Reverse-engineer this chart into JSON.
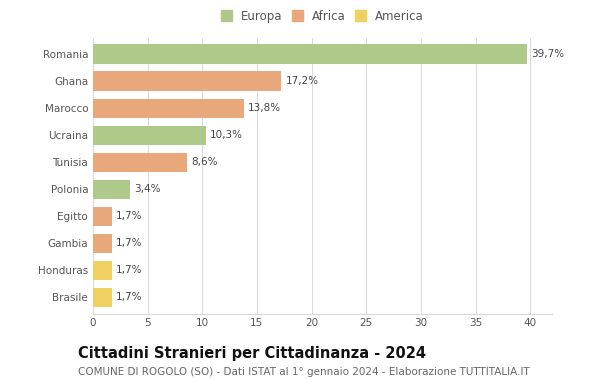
{
  "categories": [
    "Romania",
    "Ghana",
    "Marocco",
    "Ucraina",
    "Tunisia",
    "Polonia",
    "Egitto",
    "Gambia",
    "Honduras",
    "Brasile"
  ],
  "values": [
    39.7,
    17.2,
    13.8,
    10.3,
    8.6,
    3.4,
    1.7,
    1.7,
    1.7,
    1.7
  ],
  "labels": [
    "39,7%",
    "17,2%",
    "13,8%",
    "10,3%",
    "8,6%",
    "3,4%",
    "1,7%",
    "1,7%",
    "1,7%",
    "1,7%"
  ],
  "colors": [
    "#aec98a",
    "#e8a87c",
    "#e8a87c",
    "#aec98a",
    "#e8a87c",
    "#aec98a",
    "#e8a87c",
    "#e8a87c",
    "#f0d060",
    "#f0d060"
  ],
  "legend_labels": [
    "Europa",
    "Africa",
    "America"
  ],
  "legend_colors": [
    "#aec98a",
    "#e8a87c",
    "#f0d060"
  ],
  "title": "Cittadini Stranieri per Cittadinanza - 2024",
  "subtitle": "COMUNE DI ROGOLO (SO) - Dati ISTAT al 1° gennaio 2024 - Elaborazione TUTTITALIA.IT",
  "xlim": [
    0,
    42
  ],
  "xticks": [
    0,
    5,
    10,
    15,
    20,
    25,
    30,
    35,
    40
  ],
  "background_color": "#ffffff",
  "grid_color": "#d8d8d8",
  "bar_height": 0.72,
  "title_fontsize": 10.5,
  "subtitle_fontsize": 7.5,
  "label_fontsize": 7.5,
  "tick_fontsize": 7.5,
  "legend_fontsize": 8.5
}
